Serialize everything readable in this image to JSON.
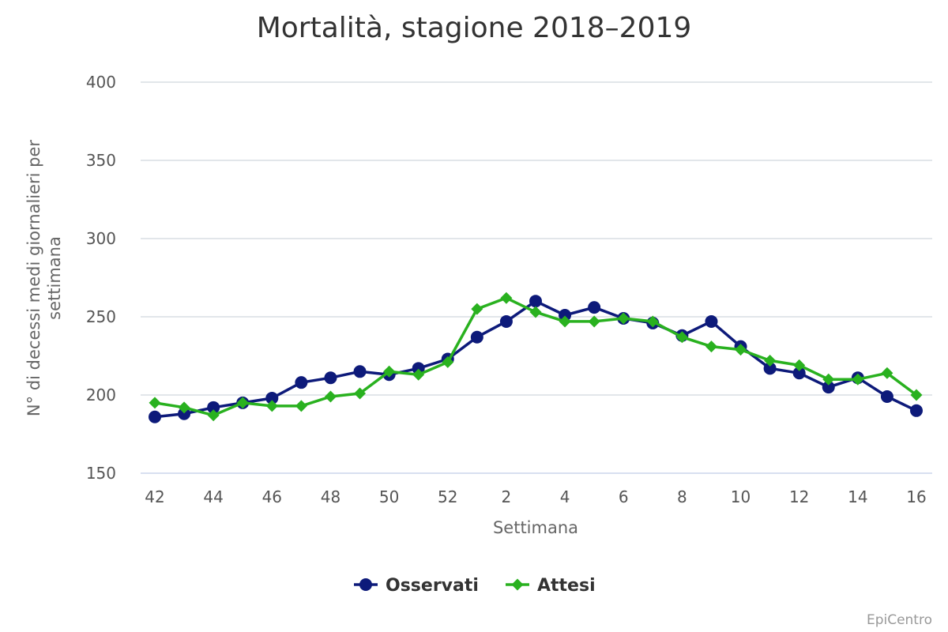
{
  "chart_data": {
    "type": "line",
    "title": "Mortalità, stagione 2018–2019",
    "xlabel": "Settimana",
    "ylabel": "N° di decessi medi giornalieri per settimana",
    "ylim": [
      150,
      400
    ],
    "yticks": [
      150,
      200,
      250,
      300,
      350,
      400
    ],
    "grid": true,
    "legend_position": "bottom-center",
    "categories": [
      "42",
      "43",
      "44",
      "45",
      "46",
      "47",
      "48",
      "49",
      "50",
      "51",
      "52",
      "1",
      "2",
      "3",
      "4",
      "5",
      "6",
      "7",
      "8",
      "9",
      "10",
      "11",
      "12",
      "13",
      "14",
      "15",
      "16"
    ],
    "x_tick_labels": [
      "42",
      "44",
      "46",
      "48",
      "50",
      "52",
      "2",
      "4",
      "6",
      "8",
      "10",
      "12",
      "14",
      "16"
    ],
    "series": [
      {
        "name": "Osservati",
        "color": "#0d1a7a",
        "marker": "circle",
        "values": [
          186,
          188,
          192,
          195,
          198,
          208,
          211,
          215,
          213,
          217,
          223,
          237,
          247,
          260,
          251,
          256,
          249,
          246,
          238,
          247,
          231,
          217,
          214,
          205,
          211,
          199,
          190
        ]
      },
      {
        "name": "Attesi",
        "color": "#29b11f",
        "marker": "diamond",
        "values": [
          195,
          192,
          187,
          195,
          193,
          193,
          199,
          201,
          215,
          213,
          221,
          255,
          262,
          253,
          247,
          247,
          249,
          247,
          237,
          231,
          229,
          222,
          219,
          210,
          210,
          214,
          200
        ]
      }
    ]
  },
  "credit": "EpiCentro"
}
